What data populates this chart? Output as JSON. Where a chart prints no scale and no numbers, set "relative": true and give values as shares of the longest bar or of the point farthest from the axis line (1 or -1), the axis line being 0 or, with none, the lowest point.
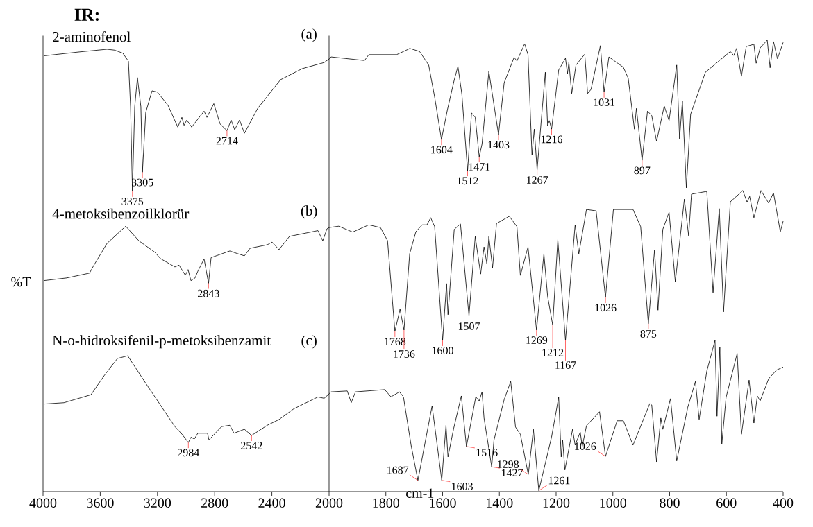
{
  "chart_data": [
    {
      "type": "line",
      "title": "IR:",
      "ylabel": "%T",
      "relative": true,
      "xlim": [
        4000,
        2000
      ],
      "xticks": [
        4000,
        3600,
        3200,
        2800,
        2400,
        2000
      ],
      "series": [
        {
          "name": "2-aminofenol",
          "color": "#000000",
          "x": [
            3995,
            3743,
            3553,
            3500,
            3442,
            3403,
            3388,
            3375,
            3359,
            3340,
            3316,
            3305,
            3282,
            3238,
            3200,
            3126,
            3058,
            3029,
            3014,
            2995,
            2961,
            2908,
            2874,
            2854,
            2806,
            2762,
            2714,
            2685,
            2660,
            2626,
            2592,
            2500,
            2340,
            2189,
            2034,
            2000
          ],
          "values": [
            0.985,
            0.994,
            1.0,
            0.998,
            0.991,
            0.973,
            0.87,
            0.679,
            0.87,
            0.936,
            0.87,
            0.722,
            0.857,
            0.906,
            0.903,
            0.873,
            0.824,
            0.846,
            0.828,
            0.84,
            0.824,
            0.846,
            0.86,
            0.846,
            0.877,
            0.831,
            0.816,
            0.84,
            0.818,
            0.84,
            0.81,
            0.866,
            0.931,
            0.956,
            0.97,
            0.978
          ]
        },
        {
          "name": "4-metoksibenzoilklorür",
          "color": "#000000",
          "x": [
            3995,
            3835,
            3675,
            3646,
            3553,
            3422,
            3330,
            3218,
            3180,
            3078,
            3049,
            3005,
            2986,
            2966,
            2937,
            2918,
            2874,
            2843,
            2825,
            2694,
            2641,
            2592,
            2553,
            2432,
            2398,
            2350,
            2277,
            2078,
            2044,
            2015,
            2000
          ],
          "values": [
            0.477,
            0.483,
            0.494,
            0.511,
            0.561,
            0.6,
            0.567,
            0.541,
            0.527,
            0.508,
            0.512,
            0.489,
            0.502,
            0.477,
            0.483,
            0.498,
            0.526,
            0.471,
            0.529,
            0.544,
            0.538,
            0.533,
            0.55,
            0.558,
            0.564,
            0.547,
            0.577,
            0.59,
            0.567,
            0.594,
            0.597
          ]
        },
        {
          "name": "N-o-hidroksifenil-p-metoksibenzamit",
          "color": "#000000",
          "x": [
            3995,
            3854,
            3665,
            3573,
            3480,
            3408,
            3282,
            3180,
            3078,
            3029,
            2984,
            2966,
            2942,
            2918,
            2850,
            2840,
            2752,
            2694,
            2665,
            2592,
            2542,
            2432,
            2350,
            2248,
            2078,
            2034,
            2000
          ],
          "values": [
            0.198,
            0.201,
            0.219,
            0.262,
            0.301,
            0.307,
            0.245,
            0.196,
            0.147,
            0.13,
            0.111,
            0.123,
            0.119,
            0.132,
            0.132,
            0.117,
            0.147,
            0.15,
            0.132,
            0.141,
            0.127,
            0.15,
            0.163,
            0.187,
            0.214,
            0.211,
            0.221
          ]
        }
      ],
      "annotations": [
        "(a)",
        "(b)",
        "(c)",
        {
          "text": "3375",
          "x": 3375,
          "y": 0.679
        },
        {
          "text": "3305",
          "x": 3305,
          "y": 0.722
        },
        {
          "text": "2714",
          "x": 2714,
          "y": 0.816
        },
        {
          "text": "2843",
          "x": 2843,
          "y": 0.471
        },
        {
          "text": "2984",
          "x": 2984,
          "y": 0.111
        },
        {
          "text": "2542",
          "x": 2542,
          "y": 0.127
        }
      ]
    },
    {
      "type": "line",
      "xlabel": "cm-1",
      "relative": true,
      "xlim": [
        2000,
        400
      ],
      "xticks": [
        1800,
        1600,
        1400,
        1200,
        1000,
        800,
        600,
        400
      ],
      "series": [
        {
          "color": "#000000",
          "x": [
            2000,
            1993,
            1875,
            1860,
            1762,
            1721,
            1716,
            1681,
            1649,
            1628,
            1604,
            1583,
            1559,
            1546,
            1532,
            1512,
            1498,
            1485,
            1471,
            1461,
            1437,
            1403,
            1383,
            1348,
            1338,
            1311,
            1299,
            1285,
            1277,
            1267,
            1238,
            1230,
            1224,
            1216,
            1191,
            1167,
            1160,
            1155,
            1145,
            1130,
            1099,
            1089,
            1077,
            1044,
            1031,
            1014,
            963,
            946,
            924,
            917,
            897,
            878,
            863,
            846,
            819,
            802,
            775,
            765,
            755,
            741,
            726,
            674,
            586,
            574,
            564,
            547,
            530,
            503,
            495,
            481,
            456,
            446,
            434,
            420,
            400
          ],
          "values": [
            0.958,
            0.963,
            0.955,
            0.968,
            0.968,
            0.98,
            0.982,
            0.975,
            0.945,
            0.874,
            0.78,
            0.846,
            0.912,
            0.942,
            0.88,
            0.711,
            0.839,
            0.829,
            0.742,
            0.77,
            0.931,
            0.791,
            0.906,
            0.962,
            0.954,
            0.992,
            0.968,
            0.745,
            0.803,
            0.713,
            0.929,
            0.811,
            0.822,
            0.803,
            0.934,
            0.96,
            0.926,
            0.951,
            0.882,
            0.945,
            0.969,
            0.882,
            0.891,
            0.988,
            0.885,
            0.963,
            0.94,
            0.916,
            0.803,
            0.849,
            0.734,
            0.843,
            0.833,
            0.776,
            0.854,
            0.822,
            0.945,
            0.782,
            0.865,
            0.673,
            0.836,
            0.929,
            0.975,
            0.966,
            0.982,
            0.92,
            0.986,
            0.991,
            0.949,
            0.983,
            1.0,
            0.939,
            0.997,
            0.959,
            0.995
          ]
        },
        {
          "color": "#000000",
          "x": [
            2000,
            1966,
            1917,
            1860,
            1819,
            1794,
            1768,
            1750,
            1736,
            1716,
            1694,
            1672,
            1655,
            1642,
            1628,
            1600,
            1586,
            1581,
            1559,
            1537,
            1507,
            1485,
            1466,
            1454,
            1444,
            1437,
            1424,
            1410,
            1365,
            1338,
            1326,
            1299,
            1269,
            1243,
            1230,
            1212,
            1194,
            1167,
            1133,
            1120,
            1093,
            1059,
            1026,
            998,
            929,
            902,
            875,
            853,
            841,
            824,
            802,
            780,
            748,
            733,
            723,
            669,
            647,
            625,
            610,
            586,
            542,
            527,
            518,
            503,
            478,
            451,
            434,
            410,
            400
          ],
          "values": [
            0.585,
            0.588,
            0.575,
            0.591,
            0.585,
            0.556,
            0.355,
            0.404,
            0.358,
            0.527,
            0.576,
            0.591,
            0.591,
            0.607,
            0.587,
            0.335,
            0.461,
            0.392,
            0.581,
            0.593,
            0.389,
            0.565,
            0.482,
            0.542,
            0.505,
            0.565,
            0.496,
            0.594,
            0.61,
            0.587,
            0.479,
            0.542,
            0.358,
            0.527,
            0.433,
            0.369,
            0.558,
            0.335,
            0.591,
            0.527,
            0.625,
            0.622,
            0.43,
            0.625,
            0.625,
            0.587,
            0.372,
            0.536,
            0.402,
            0.581,
            0.619,
            0.465,
            0.648,
            0.567,
            0.659,
            0.665,
            0.441,
            0.627,
            0.398,
            0.642,
            0.667,
            0.641,
            0.654,
            0.607,
            0.667,
            0.639,
            0.662,
            0.576,
            0.599
          ]
        },
        {
          "color": "#000000",
          "x": [
            2000,
            1993,
            1936,
            1922,
            1907,
            1804,
            1782,
            1752,
            1738,
            1711,
            1687,
            1637,
            1603,
            1588,
            1581,
            1561,
            1534,
            1516,
            1483,
            1471,
            1461,
            1454,
            1427,
            1419,
            1383,
            1360,
            1343,
            1326,
            1298,
            1280,
            1261,
            1216,
            1191,
            1182,
            1177,
            1169,
            1142,
            1133,
            1115,
            1108,
            1093,
            1047,
            1026,
            985,
            963,
            929,
            870,
            863,
            846,
            831,
            824,
            797,
            775,
            736,
            709,
            696,
            669,
            640,
            633,
            623,
            616,
            601,
            562,
            547,
            520,
            503,
            491,
            481,
            451,
            424,
            400
          ],
          "values": [
            0.217,
            0.221,
            0.223,
            0.197,
            0.221,
            0.226,
            0.21,
            0.221,
            0.21,
            0.103,
            0.025,
            0.19,
            0.025,
            0.147,
            0.077,
            0.14,
            0.212,
            0.1,
            0.21,
            0.201,
            0.221,
            0.163,
            0.055,
            0.114,
            0.204,
            0.244,
            0.143,
            0.127,
            0.038,
            0.138,
            0.002,
            0.121,
            0.209,
            0.077,
            0.114,
            0.048,
            0.138,
            0.103,
            0.132,
            0.1,
            0.146,
            0.177,
            0.078,
            0.157,
            0.157,
            0.103,
            0.195,
            0.192,
            0.066,
            0.163,
            0.138,
            0.206,
            0.068,
            0.187,
            0.244,
            0.16,
            0.267,
            0.335,
            0.167,
            0.32,
            0.106,
            0.209,
            0.306,
            0.127,
            0.247,
            0.152,
            0.212,
            0.201,
            0.25,
            0.269,
            0.276
          ]
        }
      ],
      "annotations": [
        {
          "text": "1604",
          "x": 1604,
          "y": 0.78
        },
        {
          "text": "1512",
          "x": 1512,
          "y": 0.711
        },
        {
          "text": "1471",
          "x": 1471,
          "y": 0.742
        },
        {
          "text": "1403",
          "x": 1403,
          "y": 0.791
        },
        {
          "text": "1267",
          "x": 1267,
          "y": 0.713
        },
        {
          "text": "1216",
          "x": 1216,
          "y": 0.803
        },
        {
          "text": "1031",
          "x": 1031,
          "y": 0.885
        },
        {
          "text": "897",
          "x": 897,
          "y": 0.734
        },
        {
          "text": "1768",
          "x": 1768,
          "y": 0.355
        },
        {
          "text": "1736",
          "x": 1736,
          "y": 0.358
        },
        {
          "text": "1600",
          "x": 1600,
          "y": 0.335
        },
        {
          "text": "1507",
          "x": 1507,
          "y": 0.389
        },
        {
          "text": "1269",
          "x": 1269,
          "y": 0.358
        },
        {
          "text": "1212",
          "x": 1212,
          "y": 0.369
        },
        {
          "text": "1167",
          "x": 1167,
          "y": 0.335
        },
        {
          "text": "1026",
          "x": 1026,
          "y": 0.43
        },
        {
          "text": "875",
          "x": 875,
          "y": 0.372
        },
        {
          "text": "1687",
          "x": 1687,
          "y": 0.025
        },
        {
          "text": "1603",
          "x": 1603,
          "y": 0.025
        },
        {
          "text": "1516",
          "x": 1516,
          "y": 0.1
        },
        {
          "text": "1427",
          "x": 1427,
          "y": 0.055
        },
        {
          "text": "1298",
          "x": 1298,
          "y": 0.038
        },
        {
          "text": "1261",
          "x": 1261,
          "y": 0.002
        },
        {
          "text": "1026",
          "x": 1026,
          "y": 0.078
        }
      ]
    }
  ]
}
